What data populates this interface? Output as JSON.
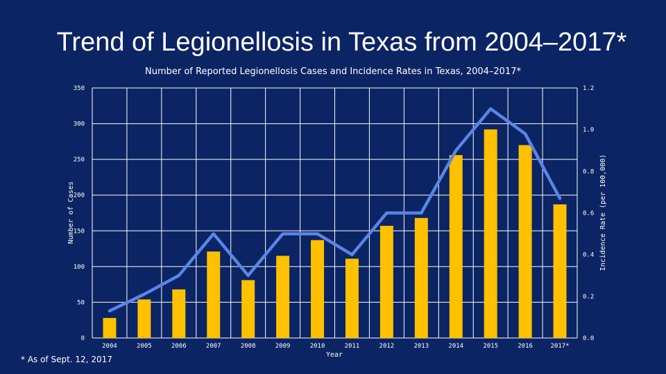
{
  "slide": {
    "title": "Trend of Legionellosis in Texas from 2004–2017*",
    "footnote": "* As of Sept. 12, 2017"
  },
  "colors": {
    "background": "#0b2463",
    "bars": "#ffc000",
    "line": "#5b84e8",
    "grid": "#ffffff"
  },
  "chart_data": {
    "type": "bar",
    "title": "Number of Reported Legionellosis Cases and Incidence Rates in Texas, 2004–2017*",
    "xlabel": "Year",
    "ylabel": "Number of Cases",
    "y2label": "Incidence Rate (per 100,000)",
    "ylim": [
      0,
      350
    ],
    "y2lim": [
      0,
      1.2
    ],
    "yticks": [
      "0",
      "50",
      "100",
      "150",
      "200",
      "250",
      "300",
      "350"
    ],
    "y2ticks": [
      "0.0",
      "0.2",
      "0.4",
      "0.6",
      "0.8",
      "1.0",
      "1.2"
    ],
    "grid": true,
    "categories": [
      "2004",
      "2005",
      "2006",
      "2007",
      "2008",
      "2009",
      "2010",
      "2011",
      "2012",
      "2013",
      "2014",
      "2015",
      "2016",
      "2017*"
    ],
    "series": [
      {
        "name": "Number of Cases",
        "type": "bar",
        "axis": "left",
        "values": [
          28,
          54,
          68,
          121,
          81,
          115,
          137,
          111,
          157,
          168,
          256,
          292,
          270,
          187
        ]
      },
      {
        "name": "Incidence Rate",
        "type": "line",
        "axis": "right",
        "values": [
          0.13,
          0.21,
          0.3,
          0.5,
          0.3,
          0.5,
          0.5,
          0.4,
          0.6,
          0.6,
          0.9,
          1.1,
          0.98,
          0.67
        ]
      }
    ]
  }
}
